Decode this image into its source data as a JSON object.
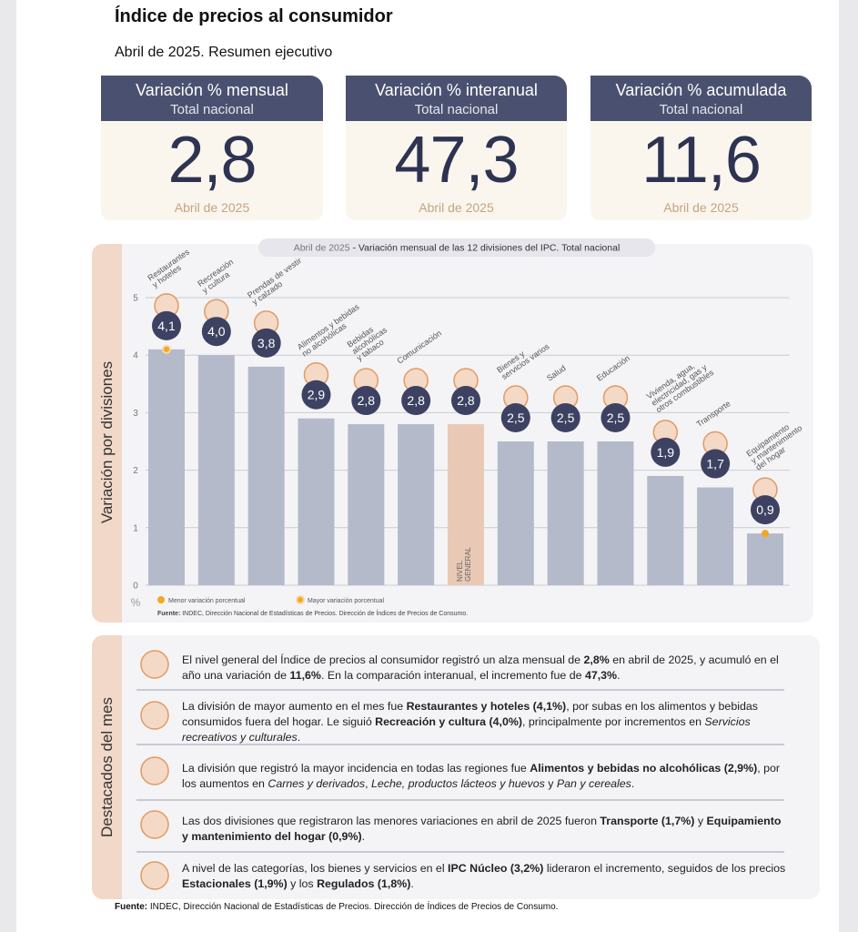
{
  "header": {
    "title": "Índice de precios al consumidor",
    "subtitle": "Abril de 2025. Resumen ejecutivo"
  },
  "cards": [
    {
      "title": "Variación % mensual",
      "subtitle": "Total nacional",
      "value": "2,8",
      "date": "Abril de 2025"
    },
    {
      "title": "Variación % interanual",
      "subtitle": "Total nacional",
      "value": "47,3",
      "date": "Abril de 2025"
    },
    {
      "title": "Variación % acumulada",
      "subtitle": "Total nacional",
      "value": "11,6",
      "date": "Abril de 2025"
    }
  ],
  "chart_data": {
    "type": "bar",
    "title": [
      "Abril de 2025",
      " - Variación mensual de las 12 divisiones del IPC. Total nacional"
    ],
    "y_label": "Variación por divisiones",
    "y_unit": "%",
    "categories": [
      "Restaurantes\ny hoteles",
      "Recreación\ny cultura",
      "Prendas de vestir\ny calzado",
      "Alimentos y bebidas\nno alcohólicas",
      "Bebidas\nalcohólicas\ny tabaco",
      "Comunicación",
      "NIVEL\nGENERAL",
      "Bienes y\nservicios varios",
      "Salud",
      "Educación",
      "Vivienda, agua,\nelectricidad, gas y\notros combustibles",
      "Transporte",
      "Equipamiento\ny mantenimiento\ndel hogar"
    ],
    "values": [
      4.1,
      4.0,
      3.8,
      2.9,
      2.8,
      2.8,
      2.8,
      2.5,
      2.5,
      2.5,
      1.9,
      1.7,
      0.9
    ],
    "value_labels": [
      "4,1",
      "4,0",
      "3,8",
      "2,9",
      "2,8",
      "2,8",
      "2,8",
      "2,5",
      "2,5",
      "2,5",
      "1,9",
      "1,7",
      "0,9"
    ],
    "colors": [
      "#b4bac9",
      "#b4bac9",
      "#b4bac9",
      "#b4bac9",
      "#b4bac9",
      "#b4bac9",
      "#e9c9b6",
      "#b4bac9",
      "#b4bac9",
      "#b4bac9",
      "#b4bac9",
      "#b4bac9",
      "#b4bac9"
    ],
    "ylim": [
      0,
      5
    ],
    "yticks": [
      0,
      1,
      2,
      3,
      4,
      5
    ],
    "grid": true,
    "legend": [
      "Menor variación porcentual",
      "Mayor variación porcentual"
    ],
    "marker_color": "#f5a623",
    "source": [
      "Fuente:",
      " INDEC, Dirección Nacional de Estadísticas de Precios. Dirección de Índices de Precios de Consumo."
    ]
  },
  "highlights": {
    "title": "Destacados del mes",
    "items": [
      [
        "El nivel general del Índice de precios al consumidor registró un alza mensual de ",
        "2,8%",
        " en abril de 2025, y acumuló en el año una variación de ",
        "11,6%",
        ". En la comparación interanual, el incremento fue de ",
        "47,3%",
        "."
      ],
      [
        "La división de mayor aumento en el mes fue ",
        "Restaurantes y hoteles (4,1%)",
        ", por subas en los alimentos y bebidas consumidos fuera del hogar. Le siguió ",
        "Recreación y cultura (4,0%)",
        ", principalmente por incrementos en ",
        "Servicios recreativos y culturales",
        "."
      ],
      [
        "La división que registró la mayor incidencia en todas las regiones fue ",
        "Alimentos y bebidas no alcohólicas (2,9%)",
        ", por los aumentos en ",
        "Carnes y derivados",
        ", ",
        "Leche, productos lácteos y huevos",
        " y ",
        "Pan y cereales",
        "."
      ],
      [
        "Las dos divisiones que registraron las menores variaciones en abril de 2025 fueron ",
        "Transporte (1,7%)",
        " y ",
        "Equipamiento y mantenimiento del hogar (0,9%)",
        "."
      ],
      [
        "A nivel de las categorías, los bienes y servicios en el ",
        "IPC Núcleo (3,2%)",
        " lideraron el incremento, seguidos de los precios ",
        "Estacionales (1,9%)",
        " y los ",
        "Regulados (1,8%)",
        "."
      ]
    ]
  },
  "footer": [
    "Fuente:",
    " INDEC, Dirección Nacional de Estadísticas de Precios. Dirección de Índices de Precios de Consumo."
  ]
}
